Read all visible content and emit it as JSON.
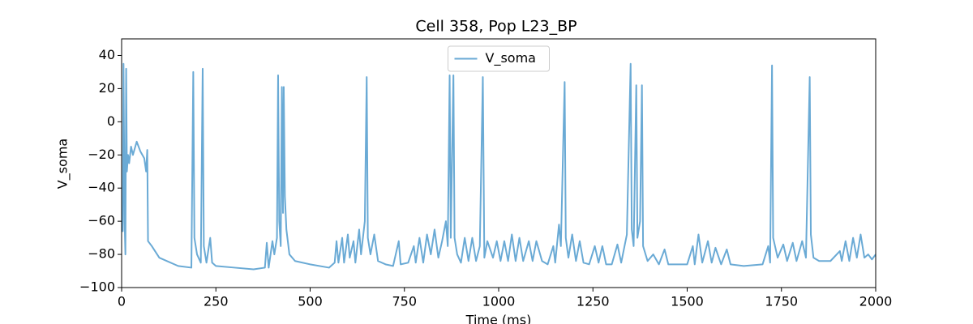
{
  "chart_data": {
    "type": "line",
    "title": "Cell 358, Pop L23_BP",
    "x_label": "Time (ms)",
    "y_label": "V_soma",
    "legend_position": "upper center",
    "xlim": [
      0,
      2000
    ],
    "ylim": [
      -100,
      50
    ],
    "xticks": [
      0,
      250,
      500,
      750,
      1000,
      1250,
      1500,
      1750,
      2000
    ],
    "yticks": [
      {
        "value": -100,
        "label": "−100"
      },
      {
        "value": -80,
        "label": "−80"
      },
      {
        "value": -60,
        "label": "−60"
      },
      {
        "value": -40,
        "label": "−40"
      },
      {
        "value": -20,
        "label": "−20"
      },
      0,
      20,
      40
    ],
    "x": [
      0,
      3,
      5,
      8,
      10,
      12,
      14,
      17,
      20,
      25,
      30,
      40,
      50,
      60,
      65,
      68,
      70,
      80,
      100,
      150,
      185,
      190,
      193,
      200,
      210,
      215,
      218,
      225,
      235,
      240,
      250,
      300,
      350,
      380,
      385,
      390,
      400,
      405,
      412,
      415,
      418,
      422,
      425,
      428,
      430,
      433,
      437,
      445,
      460,
      500,
      550,
      565,
      570,
      575,
      585,
      590,
      600,
      605,
      615,
      620,
      630,
      635,
      645,
      650,
      653,
      660,
      670,
      680,
      700,
      720,
      735,
      740,
      760,
      775,
      780,
      790,
      800,
      810,
      820,
      830,
      840,
      850,
      860,
      865,
      870,
      873,
      880,
      883,
      890,
      900,
      910,
      920,
      930,
      940,
      950,
      958,
      962,
      970,
      985,
      995,
      1005,
      1015,
      1025,
      1035,
      1045,
      1055,
      1065,
      1080,
      1090,
      1100,
      1115,
      1130,
      1145,
      1150,
      1160,
      1165,
      1175,
      1178,
      1185,
      1195,
      1205,
      1215,
      1225,
      1240,
      1255,
      1265,
      1275,
      1285,
      1300,
      1315,
      1325,
      1340,
      1350,
      1353,
      1358,
      1365,
      1368,
      1375,
      1380,
      1383,
      1395,
      1410,
      1425,
      1440,
      1450,
      1470,
      1500,
      1515,
      1520,
      1530,
      1540,
      1555,
      1565,
      1575,
      1590,
      1605,
      1615,
      1650,
      1700,
      1715,
      1720,
      1725,
      1728,
      1740,
      1755,
      1765,
      1780,
      1790,
      1805,
      1815,
      1825,
      1828,
      1835,
      1850,
      1880,
      1905,
      1910,
      1920,
      1930,
      1940,
      1950,
      1960,
      1970,
      1980,
      1990,
      2000
    ],
    "series": [
      {
        "name": "V_soma",
        "color": "#6aaad5",
        "values": [
          -65,
          -66,
          35,
          -60,
          -80,
          32,
          -30,
          -20,
          -25,
          -15,
          -20,
          -12,
          -18,
          -22,
          -30,
          -17,
          -72,
          -75,
          -82,
          -87,
          -88,
          30,
          -70,
          -80,
          -85,
          32,
          -75,
          -85,
          -70,
          -85,
          -87,
          -88,
          -89,
          -88,
          -73,
          -88,
          -72,
          -80,
          -70,
          28,
          -60,
          -75,
          21,
          -55,
          21,
          -45,
          -65,
          -80,
          -84,
          -86,
          -88,
          -85,
          -72,
          -85,
          -70,
          -85,
          -68,
          -82,
          -72,
          -85,
          -65,
          -80,
          -60,
          27,
          -70,
          -80,
          -68,
          -84,
          -86,
          -87,
          -72,
          -86,
          -85,
          -75,
          -85,
          -70,
          -85,
          -68,
          -80,
          -65,
          -82,
          -72,
          -60,
          -75,
          28,
          -70,
          28,
          -70,
          -80,
          -85,
          -70,
          -84,
          -70,
          -84,
          -75,
          27,
          -82,
          -72,
          -82,
          -72,
          -84,
          -72,
          -84,
          -68,
          -84,
          -70,
          -84,
          -72,
          -84,
          -72,
          -84,
          -86,
          -75,
          -85,
          -62,
          -75,
          24,
          -70,
          -82,
          -68,
          -84,
          -72,
          -85,
          -86,
          -75,
          -85,
          -75,
          -86,
          -86,
          -74,
          -85,
          -68,
          35,
          -65,
          -75,
          22,
          -70,
          -60,
          22,
          -75,
          -84,
          -80,
          -86,
          -77,
          -86,
          -86,
          -86,
          -75,
          -86,
          -68,
          -85,
          -72,
          -85,
          -76,
          -86,
          -77,
          -86,
          -87,
          -86,
          -75,
          -85,
          34,
          -70,
          -82,
          -74,
          -84,
          -73,
          -84,
          -72,
          -82,
          27,
          -68,
          -82,
          -84,
          -84,
          -78,
          -84,
          -72,
          -84,
          -70,
          -82,
          -68,
          -82,
          -80,
          -83,
          -80
        ]
      }
    ]
  }
}
